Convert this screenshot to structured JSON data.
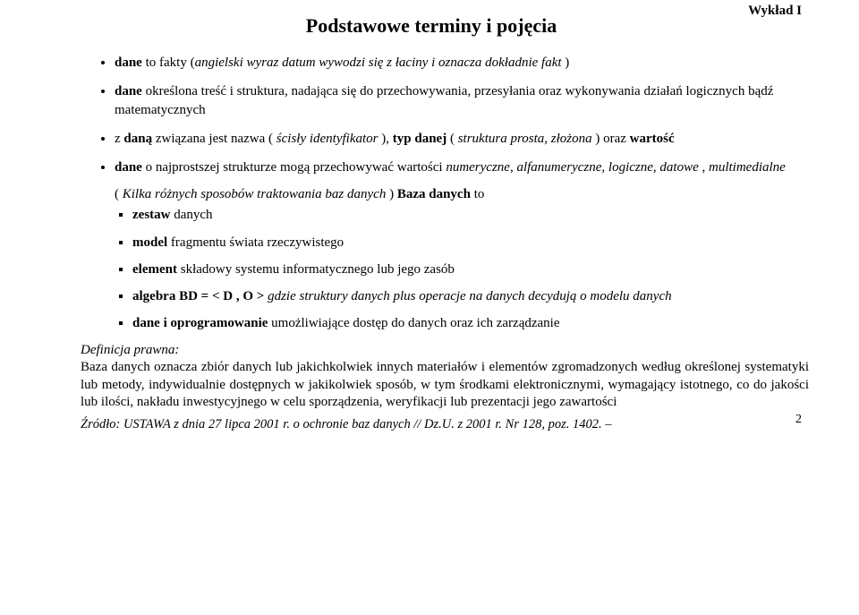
{
  "header": {
    "label": "Wykład I"
  },
  "title": "Podstawowe  terminy  i  pojęcia",
  "bullets": [
    {
      "lead_bold": "dane",
      "plain1": "  to  fakty  (",
      "italic1": "angielski  wyraz  datum  wywodzi  się  z  łaciny  i  oznacza  dokładnie  fakt ",
      "plain2": " )"
    },
    {
      "lead_bold": "dane",
      "plain1": "   określona  treść  i  struktura,  nadająca  się  do  przechowywania,  przesyłania  oraz wykonywania  działań  logicznych  bądź  matematycznych"
    },
    {
      "plain0": "  z ",
      "bold1": "daną",
      "plain1": "  związana  jest  nazwa  ( ",
      "italic1": "ścisły identyfikator ",
      "plain2": "  ),  ",
      "bold2": "typ  danej ",
      "plain3": "  ( ",
      "italic2": "struktura prosta, złożona ",
      "plain4": " )  oraz ",
      "bold3": "wartość"
    },
    {
      "lead_bold2": "  dane",
      "plain1": "  o  najprostszej  strukturze  mogą  przechowywać  wartości  ",
      "italic1": "numeryczne,  alfanumeryczne,  logiczne, datowe ,  multimedialne"
    }
  ],
  "paren": {
    "open": "( ",
    "italic": "Kilka różnych sposobów traktowania baz danych ",
    "close": " )   ",
    "bold": "Baza  danych ",
    "tail": " to"
  },
  "sub": [
    {
      "bold": "zestaw",
      "plain": "  danych"
    },
    {
      "bold": "model",
      "plain": "  fragmentu  świata  rzeczywistego"
    },
    {
      "bold": "element",
      "plain": "  składowy  systemu  informatycznego  lub  jego  zasób"
    },
    {
      "bold": "algebra   BD = < D , O > ",
      "italic": "gdzie struktury  danych plus operacje na danych decydują o modelu  danych"
    },
    {
      "bold": "dane  i  oprogramowanie",
      "plain": "  umożliwiające  dostęp  do  danych  oraz  ich zarządzanie"
    }
  ],
  "definition": {
    "label": "Definicja prawna:",
    "body": "Baza danych oznacza zbiór danych lub jakichkolwiek innych materiałów i elementów zgromadzonych według określonej systematyki lub metody, indywidualnie dostępnych w jakikolwiek sposób, w tym środkami elektronicznymi, wymagający istotnego, co do jakości lub ilości, nakładu inwestycyjnego w celu sporządzenia, weryfikacji lub prezentacji jego zawartości"
  },
  "source": "Źródło: USTAWA z dnia 27 lipca 2001 r.  o ochronie baz danych //  Dz.U.  z 2001 r. Nr 128, poz. 1402. –",
  "page_number": "2"
}
